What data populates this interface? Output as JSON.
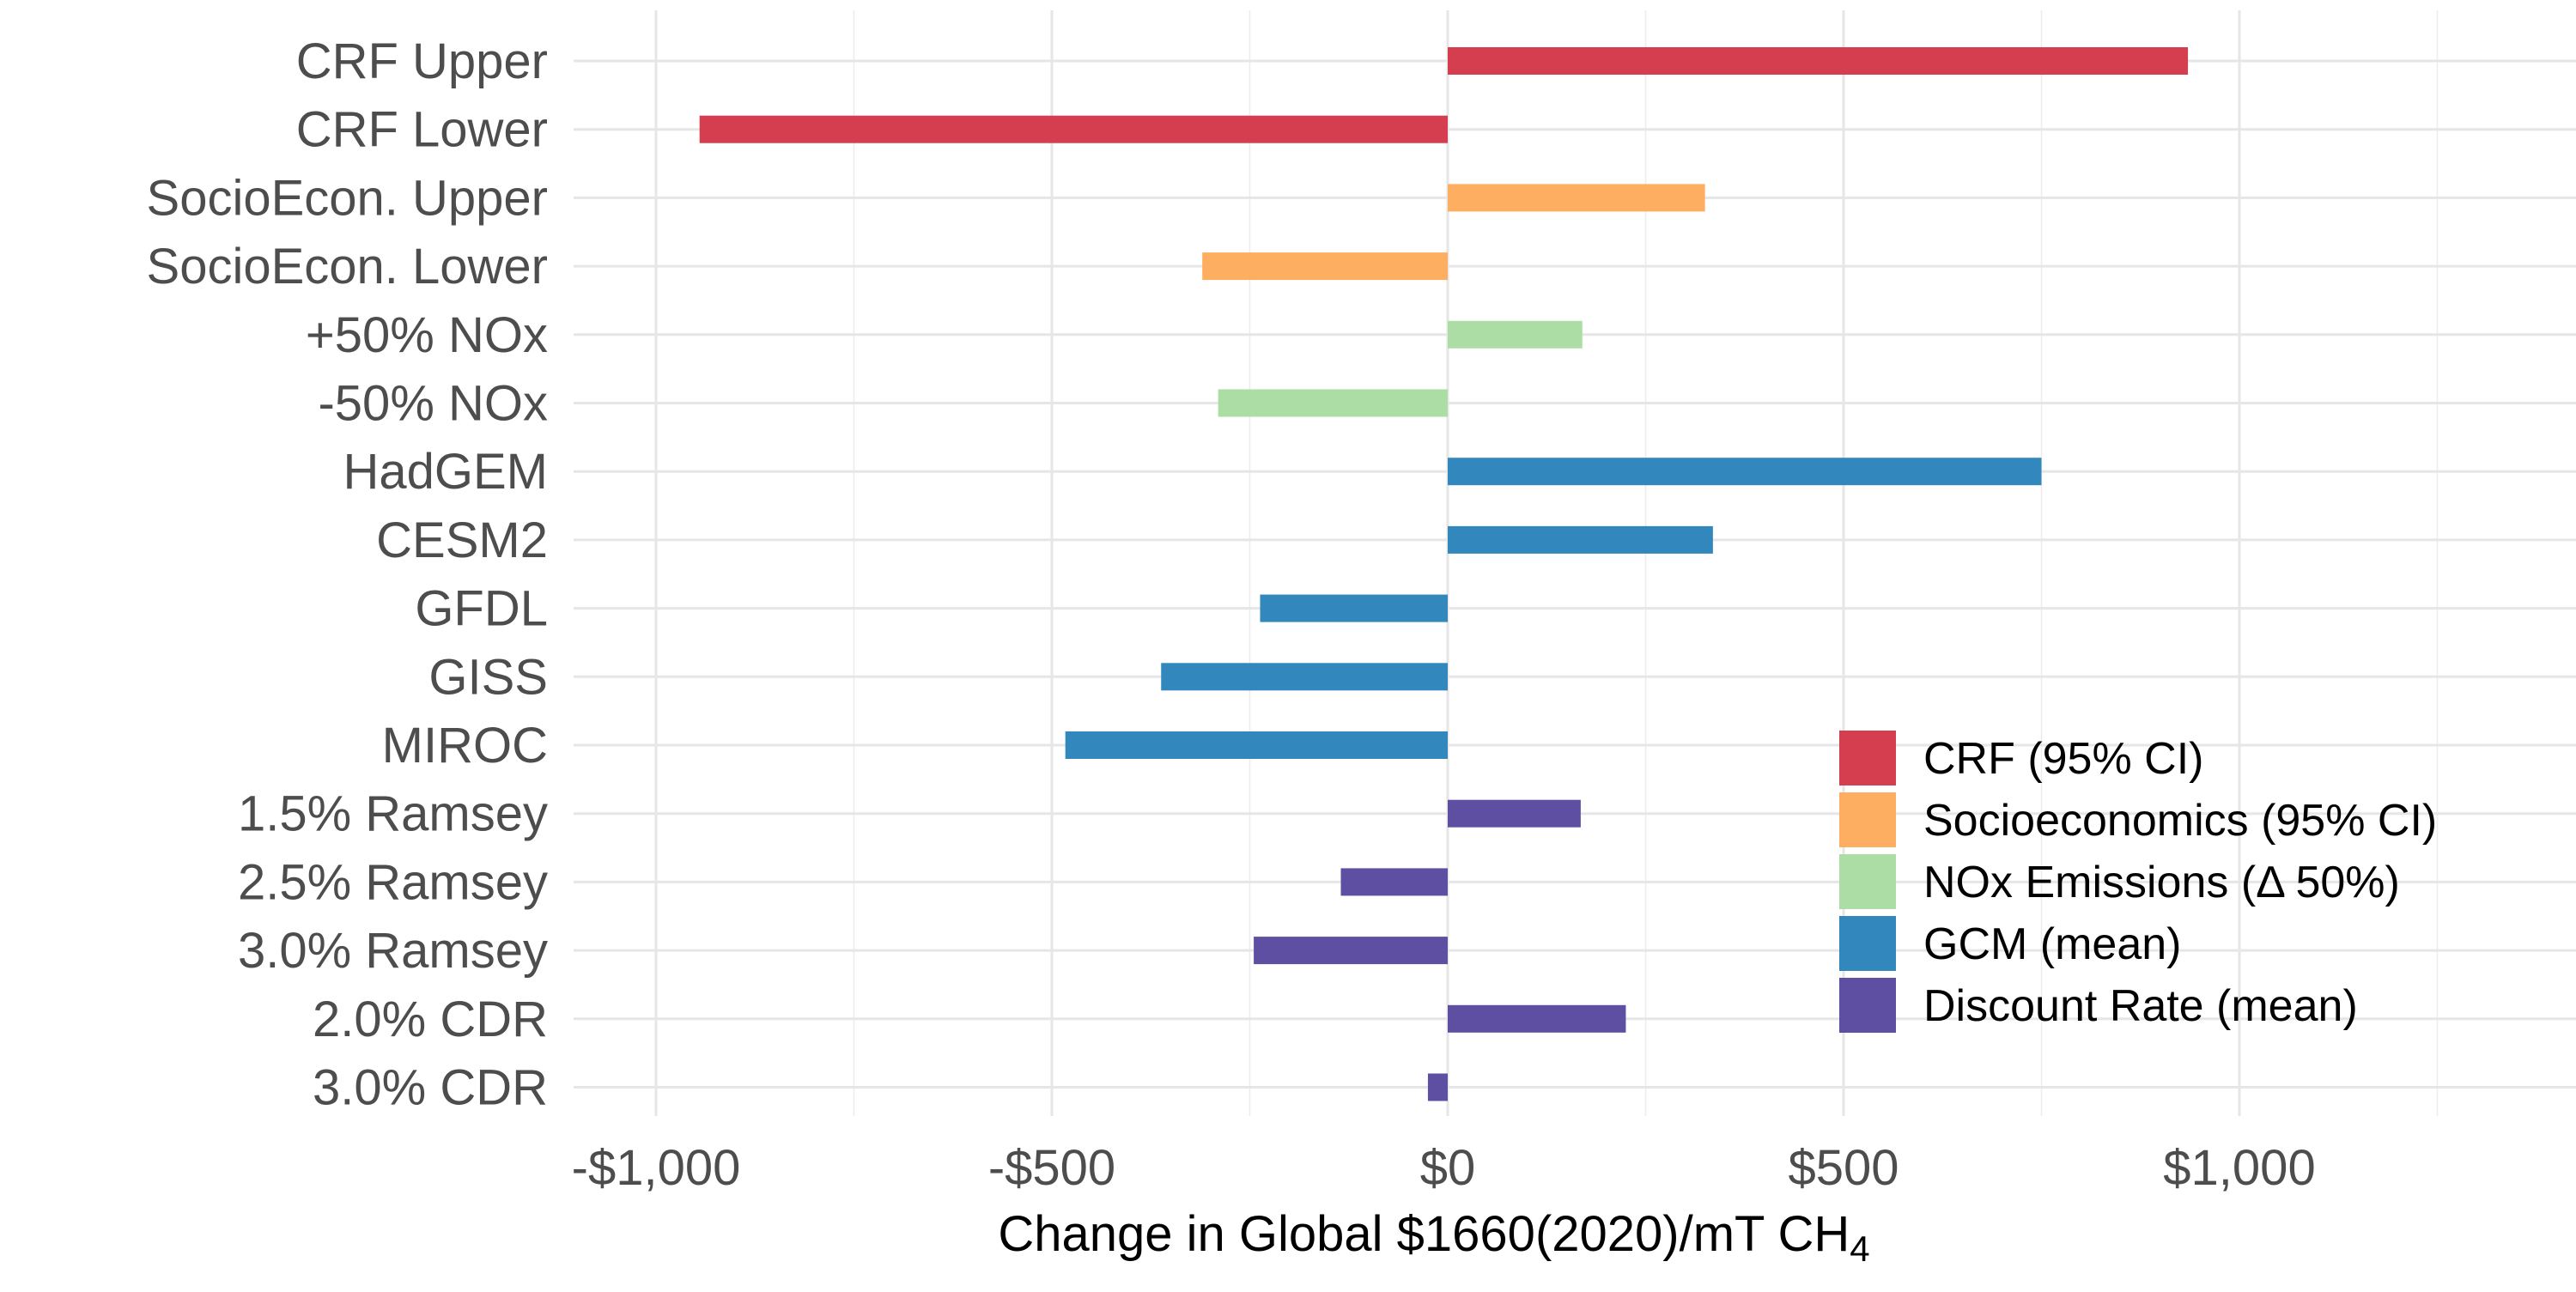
{
  "chart_data": {
    "type": "bar",
    "orientation": "horizontal",
    "categories": [
      "CRF Upper",
      "CRF Lower",
      "SocioEcon. Upper",
      "SocioEcon. Lower",
      "+50% NOx",
      "-50% NOx",
      "HadGEM",
      "CESM2",
      "GFDL",
      "GISS",
      "MIROC",
      "1.5% Ramsey",
      "2.5% Ramsey",
      "3.0% Ramsey",
      "2.0% CDR",
      "3.0% CDR"
    ],
    "values": [
      935,
      -945,
      325,
      -310,
      170,
      -290,
      750,
      335,
      -237,
      -362,
      -483,
      168,
      -135,
      -245,
      225,
      -25
    ],
    "groups": [
      "CRF (95% CI)",
      "CRF (95% CI)",
      "Socioeconomics (95% CI)",
      "Socioeconomics (95% CI)",
      "NOx Emissions (Δ 50%)",
      "NOx Emissions (Δ 50%)",
      "GCM (mean)",
      "GCM (mean)",
      "GCM (mean)",
      "GCM (mean)",
      "GCM (mean)",
      "Discount Rate (mean)",
      "Discount Rate (mean)",
      "Discount Rate (mean)",
      "Discount Rate (mean)",
      "Discount Rate (mean)"
    ],
    "legend": [
      {
        "name": "CRF (95% CI)",
        "color": "#d53e4f"
      },
      {
        "name": "Socioeconomics (95% CI)",
        "color": "#fdae61"
      },
      {
        "name": "NOx Emissions (Δ 50%)",
        "color": "#abdda4"
      },
      {
        "name": "GCM (mean)",
        "color": "#3288bd"
      },
      {
        "name": "Discount Rate (mean)",
        "color": "#5e4fa2"
      }
    ],
    "legend_position": "bottom-right",
    "xticks": [
      -1000,
      -500,
      0,
      500,
      1000
    ],
    "xtick_labels": [
      "-$1,000",
      "-$500",
      "$0",
      "$500",
      "$1,000"
    ],
    "xlim": [
      -1100,
      1400
    ],
    "xlabel_main": "Change in Global $1660(2020)/mT CH",
    "xlabel_subscript": "4",
    "ylabel": "",
    "grid": true
  }
}
